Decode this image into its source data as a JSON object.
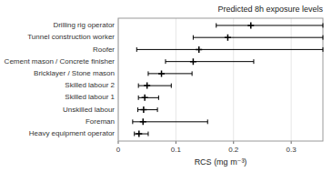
{
  "chart_data": {
    "type": "errorbar",
    "orientation": "horizontal",
    "title": "Predicted 8h exposure levels",
    "xlabel": "RCS (mg m⁻³)",
    "categories": [
      "Drilling rig operator",
      "Tunnel construction worker",
      "Roofer",
      "Cement mason / Concrete finisher",
      "Bricklayer / Stone mason",
      "Skilled labour 2",
      "Skilled labour 1",
      "Unskilled labour",
      "Foreman",
      "Heavy equipment operator"
    ],
    "values": [
      0.23,
      0.19,
      0.14,
      0.13,
      0.075,
      0.05,
      0.046,
      0.044,
      0.043,
      0.036
    ],
    "lower": [
      0.17,
      0.13,
      0.032,
      0.082,
      0.052,
      0.035,
      0.035,
      0.034,
      0.025,
      0.028
    ],
    "upper": [
      0.355,
      0.355,
      0.355,
      0.235,
      0.128,
      0.092,
      0.07,
      0.068,
      0.155,
      0.052
    ],
    "xlim": [
      0,
      0.355
    ],
    "xticks": [
      0,
      0.1,
      0.2,
      0.3
    ],
    "color": "black",
    "marker": "plus"
  }
}
